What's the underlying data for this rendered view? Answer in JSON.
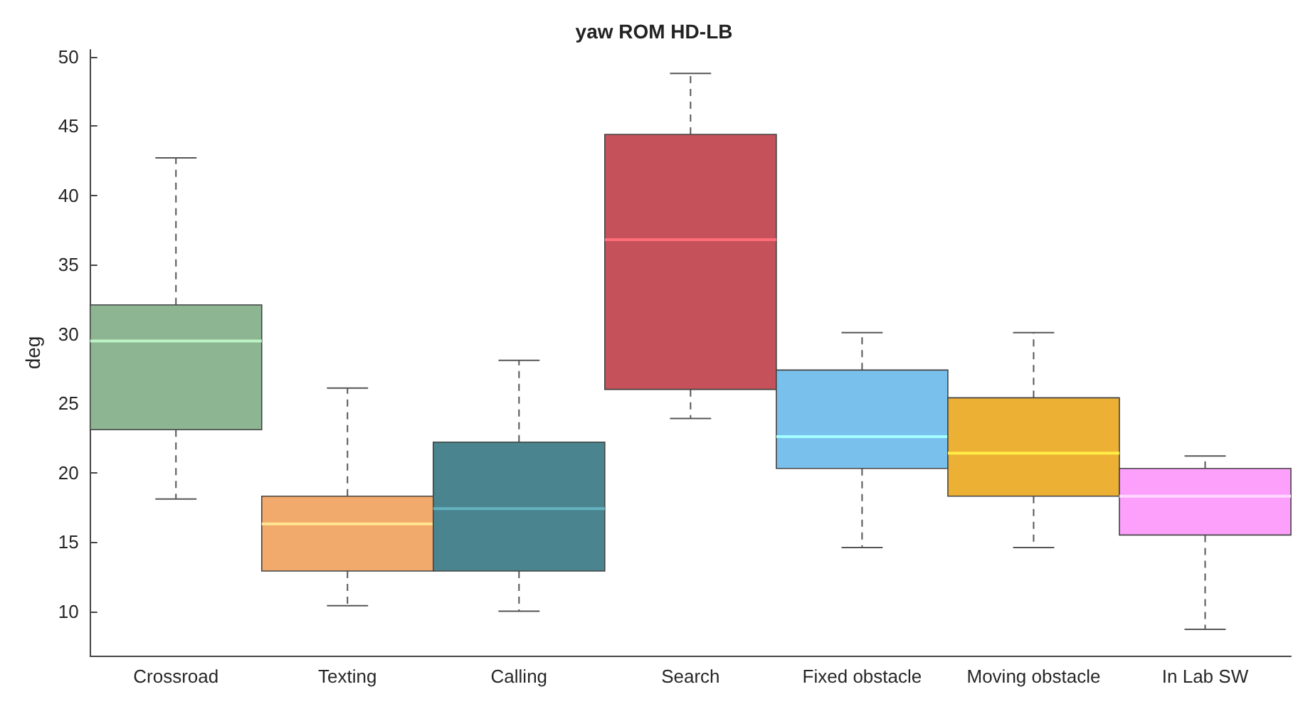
{
  "chart_data": {
    "type": "box",
    "title": "yaw ROM HD-LB",
    "ylabel": "deg",
    "categories": [
      "Crossroad",
      "Texting",
      "Calling",
      "Search",
      "Fixed obstacle",
      "Moving obstacle",
      "In Lab SW"
    ],
    "boxes": [
      {
        "low": 18.1,
        "q1": 23.1,
        "median": 29.5,
        "q3": 32.1,
        "high": 42.7
      },
      {
        "low": 10.4,
        "q1": 12.9,
        "median": 16.3,
        "q3": 18.3,
        "high": 26.1
      },
      {
        "low": 10.0,
        "q1": 12.9,
        "median": 17.4,
        "q3": 22.2,
        "high": 28.1
      },
      {
        "low": 23.9,
        "q1": 26.0,
        "median": 36.8,
        "q3": 44.4,
        "high": 48.8
      },
      {
        "low": 14.6,
        "q1": 20.3,
        "median": 22.6,
        "q3": 27.4,
        "high": 30.1
      },
      {
        "low": 14.6,
        "q1": 18.3,
        "median": 21.4,
        "q3": 25.4,
        "high": 30.1
      },
      {
        "low": 8.7,
        "q1": 15.5,
        "median": 18.3,
        "q3": 20.3,
        "high": 21.2
      }
    ],
    "colors": [
      "#8db592",
      "#f2aa6c",
      "#4a858f",
      "#c5515a",
      "#7ac0ec",
      "#ebb034",
      "#fca0fc"
    ],
    "ylim": [
      6.8,
      50.5
    ],
    "yticks": [
      10,
      15,
      20,
      25,
      30,
      35,
      40,
      45,
      50
    ],
    "grid": false
  }
}
